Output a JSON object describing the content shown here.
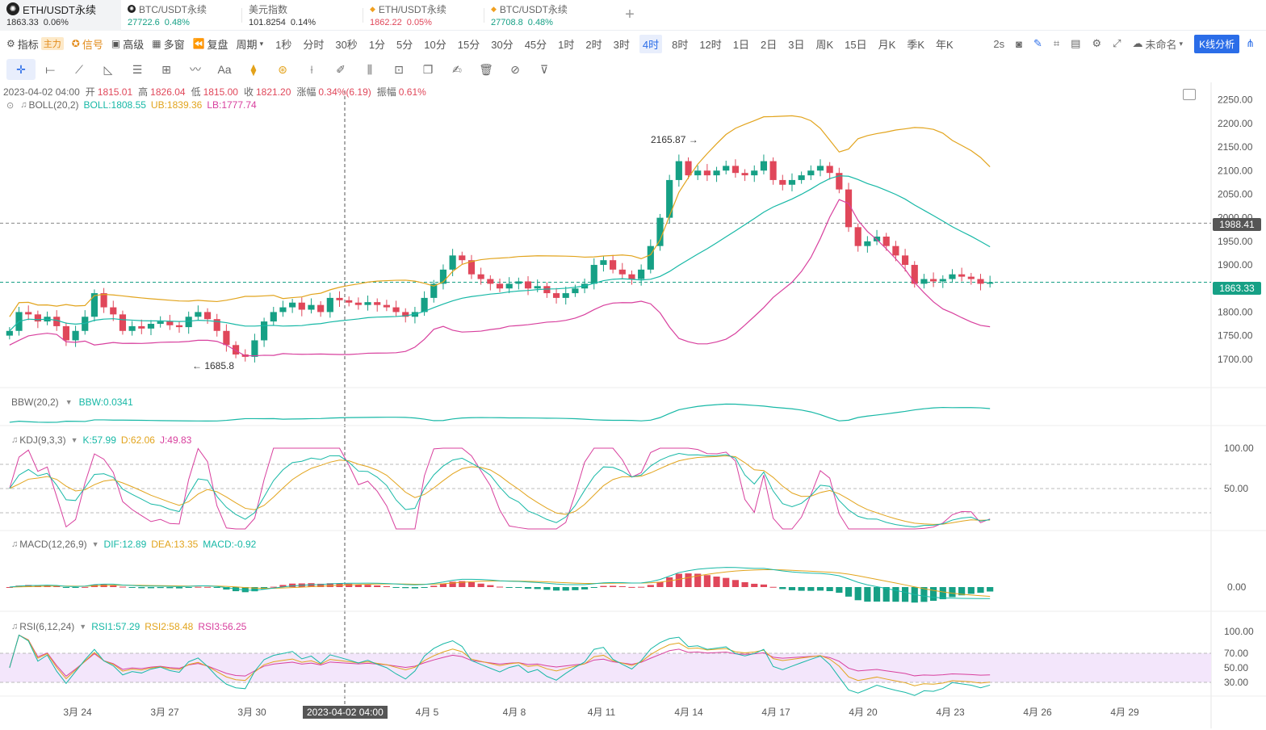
{
  "tabs": [
    {
      "name": "ETH/USDT永续",
      "price": "1863.33",
      "change": "0.06%",
      "active": true,
      "logo": "exchange-logo-icon"
    },
    {
      "name": "BTC/USDT永续",
      "price": "27722.6",
      "change": "0.48%",
      "active": false,
      "logo": "exchange-logo-icon"
    },
    {
      "name": "美元指数",
      "price": "101.8254",
      "change": "0.14%",
      "active": false,
      "logo": ""
    },
    {
      "name": "ETH/USDT永续",
      "price": "1862.22",
      "change": "0.05%",
      "active": false,
      "logo": "fav-icon"
    },
    {
      "name": "BTC/USDT永续",
      "price": "27708.8",
      "change": "0.48%",
      "active": false,
      "logo": "fav-icon"
    }
  ],
  "toolbar": {
    "indicator": "指标",
    "indicator_badge": "主力",
    "signal": "信号",
    "advanced": "高级",
    "multi_window": "多窗",
    "replay": "复盘",
    "period": "周期",
    "timeframes": [
      "1秒",
      "分时",
      "30秒",
      "1分",
      "5分",
      "10分",
      "15分",
      "30分",
      "45分",
      "1时",
      "2时",
      "3时",
      "4时",
      "8时",
      "12时",
      "1日",
      "2日",
      "3日",
      "周K",
      "15日",
      "月K",
      "季K",
      "年K"
    ],
    "active_timeframe": "4时",
    "refresh": "2s",
    "layout_name": "未命名",
    "kline_analysis": "K线分析"
  },
  "ohlc": {
    "date": "2023-04-02 04:00",
    "open_label": "开",
    "open": "1815.01",
    "high_label": "高",
    "high": "1826.04",
    "low_label": "低",
    "low": "1815.00",
    "close_label": "收",
    "close": "1821.20",
    "change_label": "涨幅",
    "change": "0.34%(6.19)",
    "amp_label": "振幅",
    "amp": "0.61%"
  },
  "indicators": {
    "boll": {
      "name": "BOLL(20,2)",
      "mid": "BOLL:1808.55",
      "ub": "UB:1839.36",
      "lb": "LB:1777.74"
    },
    "bbw": {
      "name": "BBW(20,2)",
      "val": "BBW:0.0341"
    },
    "kdj": {
      "name": "KDJ(9,3,3)",
      "k": "K:57.99",
      "d": "D:62.06",
      "j": "J:49.83"
    },
    "macd": {
      "name": "MACD(12,26,9)",
      "dif": "DIF:12.89",
      "dea": "DEA:13.35",
      "macd": "MACD:-0.92"
    },
    "rsi": {
      "name": "RSI(6,12,24)",
      "rsi1": "RSI1:57.29",
      "rsi2": "RSI2:58.48",
      "rsi3": "RSI3:56.25"
    }
  },
  "price_axis": [
    "2250.00",
    "2200.00",
    "2150.00",
    "2100.00",
    "2050.00",
    "2000.00",
    "1950.00",
    "1900.00",
    "1850.00",
    "1800.00",
    "1750.00",
    "1700.00"
  ],
  "kdj_axis": [
    "100.00",
    "50.00"
  ],
  "macd_axis": [
    "0.00"
  ],
  "rsi_axis": [
    "100.00",
    "70.00",
    "50.00",
    "30.00"
  ],
  "date_axis": [
    "3月 24",
    "3月 27",
    "3月 30",
    "4月 5",
    "4月 8",
    "4月 11",
    "4月 14",
    "4月 17",
    "4月 20",
    "4月 23",
    "4月 26",
    "4月 29"
  ],
  "crosshair_date": "2023-04-02 04:00",
  "current_price": "1863.33",
  "hover_price": "1988.41",
  "annotations": {
    "high": "2165.87",
    "low": "1685.8"
  },
  "colors": {
    "up": "#16a085",
    "down": "#e0475a",
    "accent": "#2b6de8",
    "boll_ub": "#e2a41d",
    "boll_mid": "#17b8a6",
    "boll_lb": "#d8409e"
  },
  "chart_data": {
    "type": "candlestick",
    "series_close": [
      1760,
      1800,
      1795,
      1780,
      1790,
      1770,
      1740,
      1760,
      1790,
      1840,
      1810,
      1795,
      1760,
      1770,
      1765,
      1775,
      1780,
      1772,
      1768,
      1790,
      1800,
      1785,
      1760,
      1730,
      1710,
      1705,
      1740,
      1780,
      1800,
      1810,
      1820,
      1805,
      1815,
      1800,
      1830,
      1825,
      1820,
      1815,
      1821,
      1815,
      1810,
      1800,
      1790,
      1800,
      1830,
      1860,
      1890,
      1920,
      1910,
      1880,
      1870,
      1860,
      1850,
      1860,
      1865,
      1850,
      1855,
      1840,
      1830,
      1840,
      1850,
      1860,
      1900,
      1910,
      1890,
      1880,
      1870,
      1890,
      1940,
      2000,
      2080,
      2120,
      2090,
      2100,
      2090,
      2100,
      2110,
      2095,
      2090,
      2100,
      2120,
      2080,
      2070,
      2080,
      2090,
      2100,
      2110,
      2095,
      2060,
      1980,
      1940,
      1950,
      1960,
      1940,
      1920,
      1900,
      1860,
      1870,
      1865,
      1870,
      1880,
      1875,
      1870,
      1860,
      1863
    ],
    "ylim": [
      1650,
      2270
    ],
    "high_marker": 2165.87,
    "low_marker": 1685.8
  }
}
